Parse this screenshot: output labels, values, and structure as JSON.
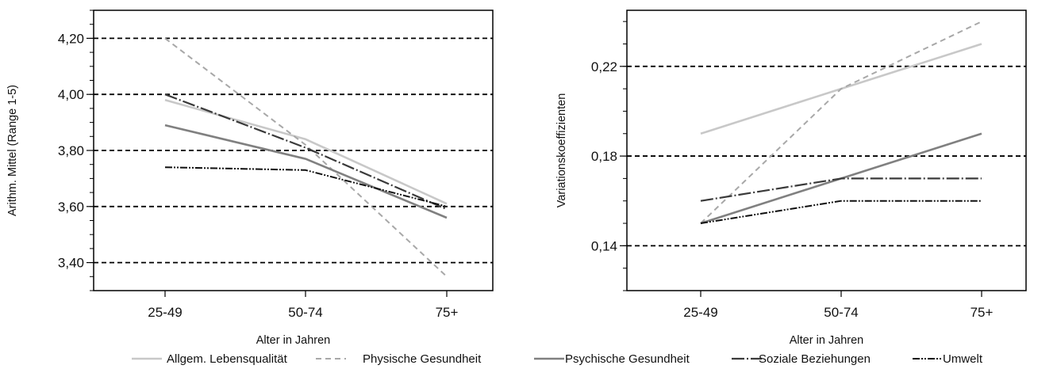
{
  "chart_data": [
    {
      "type": "line",
      "x": [
        "25-49",
        "50-74",
        "75+"
      ],
      "xlabel": "Alter in Jahren",
      "ylabel": "Arithm. Mittel (Range 1-5)",
      "ylim": [
        3.3,
        4.3
      ],
      "yticks": [
        "3,40",
        "3,60",
        "3,80",
        "4,00",
        "4,20"
      ],
      "ytick_values": [
        3.4,
        3.6,
        3.8,
        4.0,
        4.2
      ],
      "grid": "horizontal dashed at major ticks",
      "series": [
        {
          "name": "Allgem. Lebensqualität",
          "values": [
            3.98,
            3.84,
            3.61
          ],
          "color": "#c8c8c8",
          "dash": "solid"
        },
        {
          "name": "Physische Gesundheit",
          "values": [
            4.2,
            3.82,
            3.35
          ],
          "color": "#a8a8a8",
          "dash": "dashed"
        },
        {
          "name": "Psychische Gesundheit",
          "values": [
            3.89,
            3.77,
            3.56
          ],
          "color": "#808080",
          "dash": "solid"
        },
        {
          "name": "Soziale Beziehungen",
          "values": [
            4.0,
            3.81,
            3.59
          ],
          "color": "#3a3a3a",
          "dash": "longdash"
        },
        {
          "name": "Umwelt",
          "values": [
            3.74,
            3.73,
            3.6
          ],
          "color": "#101010",
          "dash": "dashdot"
        }
      ]
    },
    {
      "type": "line",
      "x": [
        "25-49",
        "50-74",
        "75+"
      ],
      "xlabel": "Alter in Jahren",
      "ylabel": "Variationskoeffizienten",
      "ylim": [
        0.12,
        0.245
      ],
      "yticks": [
        "0,14",
        "0,18",
        "0,22"
      ],
      "ytick_values": [
        0.14,
        0.18,
        0.22
      ],
      "grid": "horizontal dashed at major ticks",
      "series": [
        {
          "name": "Allgem. Lebensqualität",
          "values": [
            0.19,
            0.21,
            0.23
          ],
          "color": "#c8c8c8",
          "dash": "solid"
        },
        {
          "name": "Physische Gesundheit",
          "values": [
            0.15,
            0.21,
            0.24
          ],
          "color": "#a8a8a8",
          "dash": "dashed"
        },
        {
          "name": "Psychische Gesundheit",
          "values": [
            0.15,
            0.17,
            0.19
          ],
          "color": "#808080",
          "dash": "solid"
        },
        {
          "name": "Soziale Beziehungen",
          "values": [
            0.16,
            0.17,
            0.17
          ],
          "color": "#3a3a3a",
          "dash": "longdash"
        },
        {
          "name": "Umwelt",
          "values": [
            0.15,
            0.16,
            0.16
          ],
          "color": "#101010",
          "dash": "dashdot"
        }
      ]
    }
  ],
  "legend": {
    "placement": "bottom",
    "entries": [
      "Allgem. Lebensqualität",
      "Physische Gesundheit",
      "Psychische Gesundheit",
      "Soziale Beziehungen",
      "Umwelt"
    ]
  }
}
